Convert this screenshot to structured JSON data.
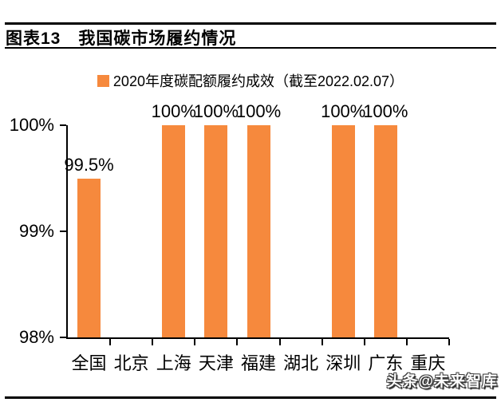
{
  "header": {
    "figure_label": "图表13",
    "title": "我国碳市场履约情况"
  },
  "legend": {
    "label": "2020年度碳配额履约成效（截至2022.02.07）",
    "swatch_color": "#F6893D"
  },
  "chart_data": {
    "type": "bar",
    "title": "",
    "series_name": "2020年度碳配额履约成效（截至2022.02.07）",
    "categories": [
      "全国",
      "北京",
      "上海",
      "天津",
      "福建",
      "湖北",
      "深圳",
      "广东",
      "重庆"
    ],
    "values": [
      99.5,
      null,
      100,
      100,
      100,
      null,
      100,
      100,
      null
    ],
    "value_labels": [
      "99.5%",
      "",
      "100%",
      "100%",
      "100%",
      "",
      "100%",
      "100%",
      ""
    ],
    "unit": "%",
    "ylim": [
      98,
      100
    ],
    "yticks": [
      {
        "value": 100,
        "label": "100%"
      },
      {
        "value": 99,
        "label": "99%"
      },
      {
        "value": 98,
        "label": "98%"
      }
    ],
    "bar_color": "#F6893D",
    "grid": false,
    "legend_position": "top"
  },
  "watermark": "头条@未来智库"
}
